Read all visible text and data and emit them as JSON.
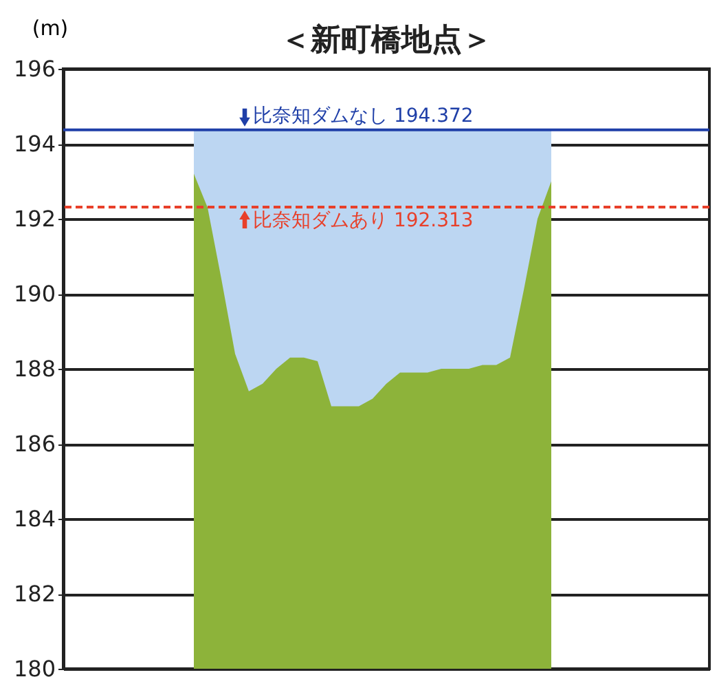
{
  "chart_data": {
    "type": "area",
    "title": "＜新町橋地点＞",
    "ylabel": "(m)",
    "categories": [
      null,
      null,
      null,
      null,
      null,
      null,
      null,
      null,
      null,
      null,
      null,
      null,
      null,
      null,
      null,
      null,
      null,
      null,
      null,
      null,
      null,
      null,
      null,
      null,
      null,
      null,
      null,
      null,
      null,
      null,
      null,
      null,
      null,
      null,
      null,
      null,
      null,
      null,
      null,
      null,
      null,
      null,
      null,
      null,
      null,
      null,
      null
    ],
    "series": [
      {
        "color": "#bcd6f2",
        "values": [
          null,
          null,
          null,
          null,
          null,
          null,
          null,
          null,
          null,
          194.372,
          194.372,
          194.372,
          194.372,
          194.372,
          194.372,
          194.372,
          194.372,
          194.372,
          194.372,
          194.372,
          194.372,
          194.372,
          194.372,
          194.372,
          194.372,
          194.372,
          194.372,
          194.372,
          194.372,
          194.372,
          194.372,
          194.372,
          194.372,
          194.372,
          194.372,
          194.372,
          null,
          null,
          null,
          null,
          null,
          null,
          null,
          null,
          null,
          null,
          null
        ]
      },
      {
        "color": "#8db33a",
        "values": [
          null,
          null,
          null,
          null,
          null,
          null,
          null,
          null,
          null,
          193.2,
          192.3,
          190.4,
          188.4,
          187.4,
          187.6,
          188.0,
          188.3,
          188.3,
          188.2,
          187.0,
          187.0,
          187.0,
          187.2,
          187.6,
          187.9,
          187.9,
          187.9,
          188.0,
          188.0,
          188.0,
          188.1,
          188.1,
          188.3,
          190.1,
          192.0,
          193.0,
          null,
          null,
          null,
          null,
          null,
          null,
          null,
          null,
          null,
          null,
          null
        ]
      }
    ],
    "ylim": [
      180,
      196
    ],
    "yticks": [
      180,
      182,
      184,
      186,
      188,
      190,
      192,
      194,
      196
    ],
    "grid": "y",
    "ref_lines": [
      {
        "axis": "y",
        "value": 194.372,
        "label": "比奈知ダムなし 194.372",
        "color": "#1f3fa8",
        "line_style": "solid"
      },
      {
        "axis": "y",
        "value": 192.313,
        "label": "比奈知ダムあり 192.313",
        "color": "#e8402a",
        "line_style": "dashed"
      }
    ]
  }
}
